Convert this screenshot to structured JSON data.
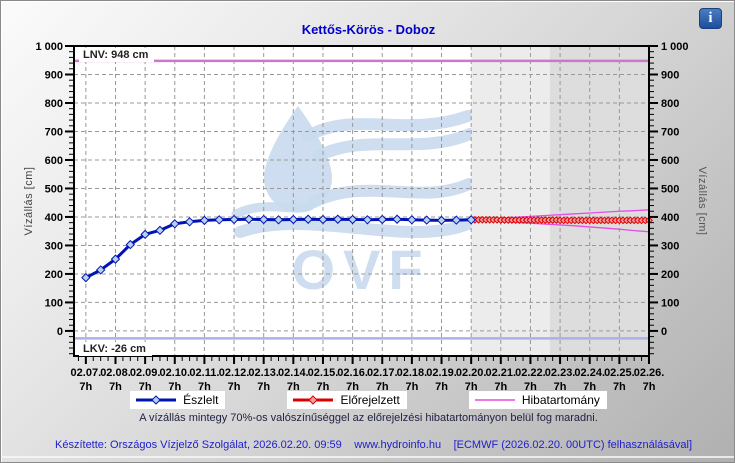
{
  "header": {
    "title": "Kettős-Körös - Doboz",
    "info_icon_glyph": "i"
  },
  "watermark": {
    "text": "OVF",
    "color": "#c9daee"
  },
  "note": "A vízállás mintegy 70%-os valószínűséggel az előrejelzési hibatartományon belül fog maradni.",
  "footer": {
    "created": "Készítette: Országos Vízjelző Szolgálat, 2026.02.20. 09:59",
    "site": "www.hydroinfo.hu",
    "model": "[ECMWF (2026.02.20. 00UTC) felhasználásával]"
  },
  "legend": {
    "items": [
      {
        "label": "Észlelt",
        "color": "#0014b4",
        "marker_fill": "#b8d0ec",
        "marker": true
      },
      {
        "label": "Előrejelzett",
        "color": "#dd0000",
        "marker_fill": "#f0a0a0",
        "marker": true
      },
      {
        "label": "Hibatartomány",
        "color": "#e44ee4",
        "marker": false
      }
    ]
  },
  "chart_data": {
    "type": "line",
    "title": "Kettős-Körös - Doboz",
    "ylabel_left": "Vízállás [cm]",
    "ylabel_right": "Vízállás [cm]",
    "ylim": [
      -88,
      1000
    ],
    "y_minor_step": 20,
    "x_min_t": -0.4,
    "x_max_t": 19,
    "x_minor_step_days": 0.25,
    "x_epoch_label": "days from 02.07. 7h",
    "yticks": [
      {
        "value": 1000,
        "label": "1 000"
      },
      {
        "value": 900,
        "label": "900"
      },
      {
        "value": 800,
        "label": "800"
      },
      {
        "value": 700,
        "label": "700"
      },
      {
        "value": 600,
        "label": "600"
      },
      {
        "value": 500,
        "label": "500"
      },
      {
        "value": 400,
        "label": "400"
      },
      {
        "value": 300,
        "label": "300"
      },
      {
        "value": 200,
        "label": "200"
      },
      {
        "value": 100,
        "label": "100"
      },
      {
        "value": 0,
        "label": "0"
      }
    ],
    "xticks": [
      {
        "t": 0,
        "date": "02.07.",
        "hour": "7h"
      },
      {
        "t": 1,
        "date": "02.08.",
        "hour": "7h"
      },
      {
        "t": 2,
        "date": "02.09.",
        "hour": "7h"
      },
      {
        "t": 3,
        "date": "02.10.",
        "hour": "7h"
      },
      {
        "t": 4,
        "date": "02.11.",
        "hour": "7h"
      },
      {
        "t": 5,
        "date": "02.12.",
        "hour": "7h"
      },
      {
        "t": 6,
        "date": "02.13.",
        "hour": "7h"
      },
      {
        "t": 7,
        "date": "02.14.",
        "hour": "7h"
      },
      {
        "t": 8,
        "date": "02.15.",
        "hour": "7h"
      },
      {
        "t": 9,
        "date": "02.16.",
        "hour": "7h"
      },
      {
        "t": 10,
        "date": "02.17.",
        "hour": "7h"
      },
      {
        "t": 11,
        "date": "02.18.",
        "hour": "7h"
      },
      {
        "t": 12,
        "date": "02.19.",
        "hour": "7h"
      },
      {
        "t": 13,
        "date": "02.20.",
        "hour": "7h"
      },
      {
        "t": 14,
        "date": "02.21.",
        "hour": "7h"
      },
      {
        "t": 15,
        "date": "02.22.",
        "hour": "7h"
      },
      {
        "t": 16,
        "date": "02.23.",
        "hour": "7h"
      },
      {
        "t": 17,
        "date": "02.24.",
        "hour": "7h"
      },
      {
        "t": 18,
        "date": "02.25.",
        "hour": "7h"
      },
      {
        "t": 19,
        "date": "02.26.",
        "hour": "7h"
      }
    ],
    "reference_lines": [
      {
        "name": "LNV",
        "label": "LNV: 948 cm",
        "value": 948,
        "color": "#cc77cc"
      },
      {
        "name": "LKV",
        "label": "LKV: -26 cm",
        "value": -26,
        "color": "#aab0e8"
      }
    ],
    "shading": {
      "light_start_t": 13.0,
      "dark_start_t": 15.65,
      "light_color": "#ececec",
      "dark_color": "#dddddd"
    },
    "series": [
      {
        "name": "Észlelt",
        "role": "observed",
        "color": "#0014b4",
        "marker_fill": "#b8d0ec",
        "line_width": 3,
        "marker_size": 4,
        "t0": 0,
        "t_step": 0.5,
        "values": [
          187,
          214,
          252,
          303,
          339,
          353,
          376,
          383,
          388,
          390,
          391,
          392,
          391,
          390,
          391,
          392,
          391,
          392,
          391,
          390,
          391,
          392,
          390,
          389,
          388,
          389,
          390
        ]
      },
      {
        "name": "Előrejelzett",
        "role": "forecast",
        "color": "#dd0000",
        "marker_fill": "#f0a0a0",
        "line_width": 3.5,
        "marker_size": 3.2,
        "t0": 13,
        "t_step": 0.125,
        "values": [
          390,
          390,
          390,
          390,
          390,
          390,
          390,
          390,
          389,
          389,
          389,
          389,
          389,
          389,
          389,
          389,
          389,
          389,
          389,
          389,
          389,
          389,
          389,
          389,
          388,
          388,
          388,
          388,
          388,
          388,
          388,
          388,
          388,
          388,
          388,
          388,
          388,
          388,
          388,
          388,
          388,
          388,
          388,
          388,
          388,
          388,
          388,
          388,
          388
        ]
      },
      {
        "name": "Hibatartomány felső",
        "role": "error-upper",
        "color": "#e44ee4",
        "line_width": 1.3,
        "marker_size": 0,
        "t0": 13,
        "t_step": 0.5,
        "values": [
          391,
          393,
          396,
          399,
          402,
          405,
          408,
          411,
          414,
          417,
          420,
          422,
          425
        ]
      },
      {
        "name": "Hibatartomány alsó",
        "role": "error-lower",
        "color": "#e44ee4",
        "line_width": 1.3,
        "marker_size": 0,
        "t0": 13,
        "t_step": 0.5,
        "values": [
          389,
          387,
          384,
          381,
          378,
          375,
          372,
          369,
          365,
          361,
          357,
          352,
          348
        ]
      }
    ]
  }
}
